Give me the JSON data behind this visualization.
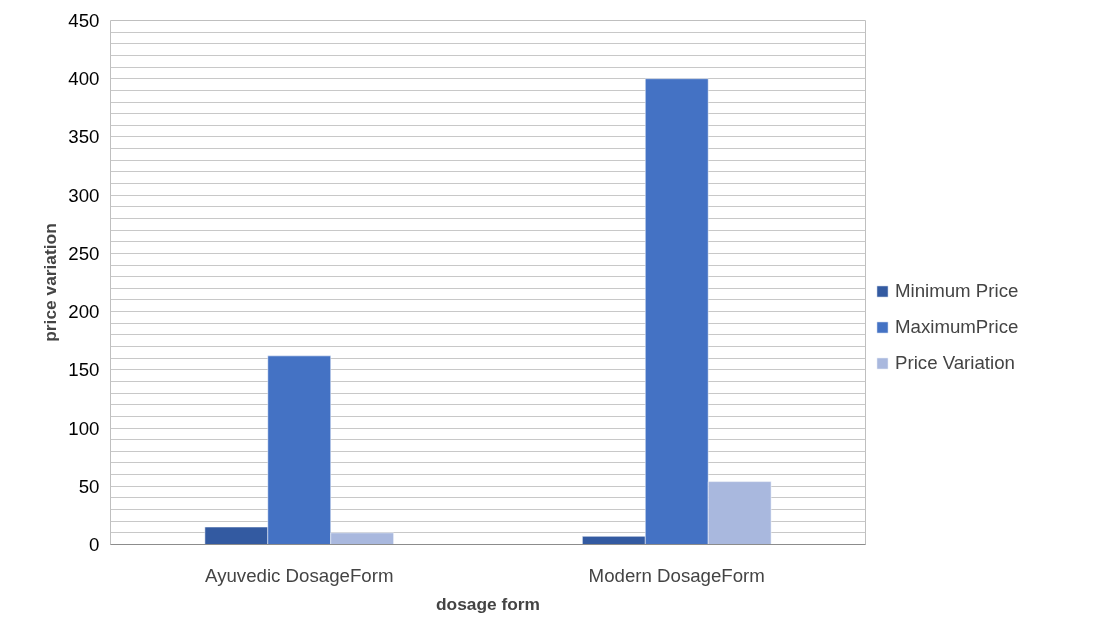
{
  "chart_data": {
    "type": "bar",
    "xlabel": "dosage form",
    "ylabel": "price variation",
    "categories": [
      "Ayuvedic DosageForm",
      "Modern DosageForm"
    ],
    "series": [
      {
        "name": "Minimum Price",
        "color": "#335aa1",
        "values": [
          15,
          7
        ]
      },
      {
        "name": "MaximumPrice",
        "color": "#4472c4",
        "values": [
          162,
          400
        ]
      },
      {
        "name": "Price Variation",
        "color": "#a9b8de",
        "values": [
          10,
          54
        ]
      }
    ],
    "ylim": [
      0,
      450
    ],
    "yticks": [
      0,
      {
        "value": 10,
        "label": null
      },
      {
        "value": 20,
        "label": null
      },
      {
        "value": 30,
        "label": null
      },
      {
        "value": 40,
        "label": null
      },
      50,
      {
        "value": 60,
        "label": null
      },
      {
        "value": 70,
        "label": null
      },
      {
        "value": 80,
        "label": null
      },
      {
        "value": 90,
        "label": null
      },
      100,
      {
        "value": 110,
        "label": null
      },
      {
        "value": 120,
        "label": null
      },
      {
        "value": 130,
        "label": null
      },
      {
        "value": 140,
        "label": null
      },
      150,
      {
        "value": 160,
        "label": null
      },
      {
        "value": 170,
        "label": null
      },
      {
        "value": 180,
        "label": null
      },
      {
        "value": 190,
        "label": null
      },
      200,
      {
        "value": 210,
        "label": null
      },
      {
        "value": 220,
        "label": null
      },
      {
        "value": 230,
        "label": null
      },
      {
        "value": 240,
        "label": null
      },
      250,
      {
        "value": 260,
        "label": null
      },
      {
        "value": 270,
        "label": null
      },
      {
        "value": 280,
        "label": null
      },
      {
        "value": 290,
        "label": null
      },
      300,
      {
        "value": 310,
        "label": null
      },
      {
        "value": 320,
        "label": null
      },
      {
        "value": 330,
        "label": null
      },
      {
        "value": 340,
        "label": null
      },
      350,
      {
        "value": 360,
        "label": null
      },
      {
        "value": 370,
        "label": null
      },
      {
        "value": 380,
        "label": null
      },
      {
        "value": 390,
        "label": null
      },
      400,
      {
        "value": 410,
        "label": null
      },
      {
        "value": 420,
        "label": null
      },
      {
        "value": 430,
        "label": null
      },
      {
        "value": 440,
        "label": null
      },
      450
    ],
    "grid": "y",
    "legend": "right"
  }
}
